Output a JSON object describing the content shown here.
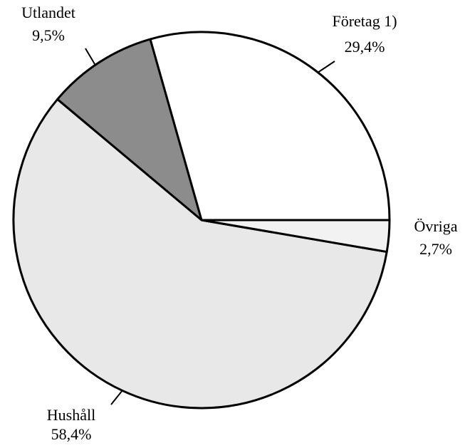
{
  "chart_data": {
    "type": "pie",
    "categories": [
      "Företag 1)",
      "Utlandet",
      "Hushåll",
      "Övriga"
    ],
    "values": [
      29.4,
      9.5,
      58.4,
      2.7
    ],
    "value_labels": [
      "29,4%",
      "9,5%",
      "58,4%",
      "2,7%"
    ],
    "colors": [
      "#ffffff",
      "#8c8c8c",
      "#e8e8e8",
      "#f2f2f2"
    ]
  }
}
